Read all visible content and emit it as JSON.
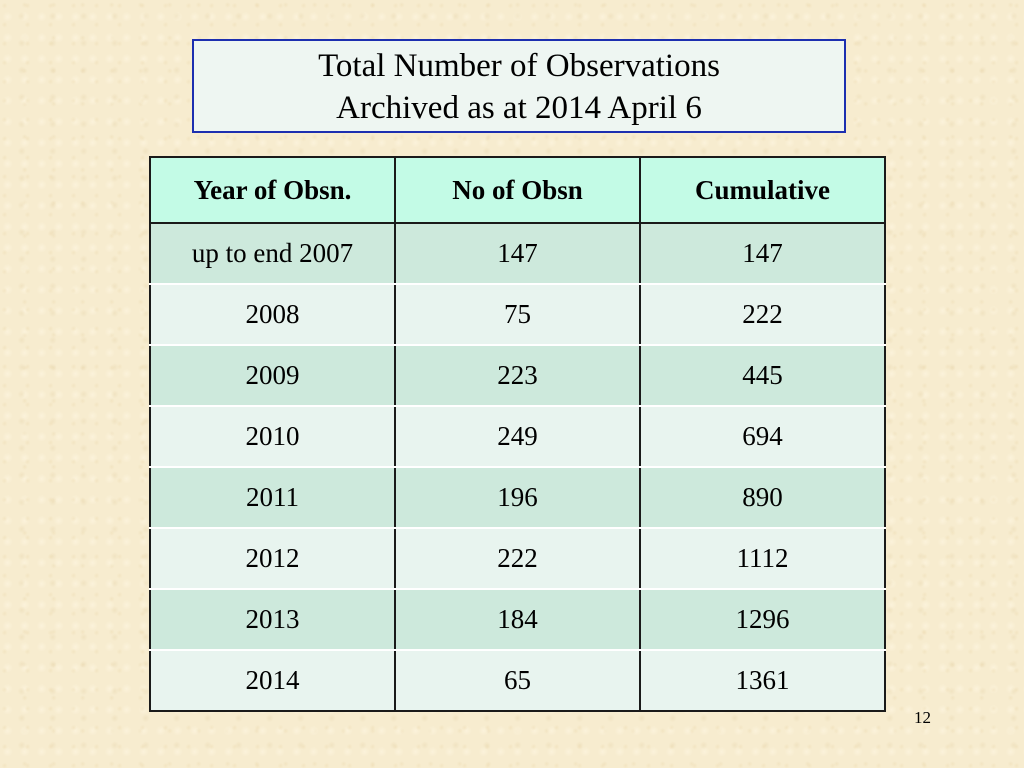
{
  "title": {
    "line1": "Total Number of Observations",
    "line2": "Archived as at 2014 April 6"
  },
  "table": {
    "headers": [
      "Year of Obsn.",
      "No of Obsn",
      "Cumulative"
    ],
    "rows": [
      [
        "up to end 2007",
        "147",
        "147"
      ],
      [
        "2008",
        "75",
        "222"
      ],
      [
        "2009",
        "223",
        "445"
      ],
      [
        "2010",
        "249",
        "694"
      ],
      [
        "2011",
        "196",
        "890"
      ],
      [
        "2012",
        "222",
        "1112"
      ],
      [
        "2013",
        "184",
        "1296"
      ],
      [
        "2014",
        "65",
        "1361"
      ]
    ]
  },
  "page_number": "12",
  "colors": {
    "background": "#f7eccf",
    "title_border": "#1c2fb0",
    "header_fill": "#c3fbe6",
    "row_fill_dark": "#cde9dc",
    "row_fill_light": "#e8f4ef"
  }
}
